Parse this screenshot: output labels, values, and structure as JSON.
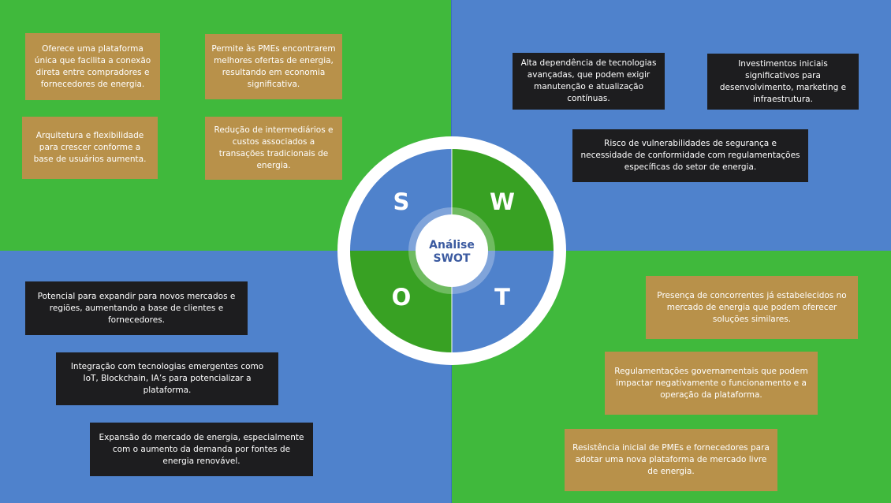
{
  "swot": {
    "title_line1": "Análise",
    "title_line2": "SWOT",
    "letters": {
      "s": "S",
      "w": "W",
      "o": "O",
      "t": "T"
    },
    "strengths": [
      "Oferece uma plataforma única que facilita a conexão direta entre compradores e fornecedores de energia.",
      "Permite às PMEs encontrarem melhores ofertas de energia, resultando em economia significativa.",
      "Arquitetura  e flexibilidade para crescer conforme a base de usuários aumenta.",
      "Redução de intermediários e custos associados a transações tradicionais de energia."
    ],
    "weaknesses": [
      "Alta dependência de tecnologias avançadas, que podem exigir manutenção e atualização contínuas.",
      "Investimentos iniciais significativos para desenvolvimento, marketing e infraestrutura.",
      "Risco de vulnerabilidades de segurança e necessidade de conformidade com regulamentações específicas do setor de energia."
    ],
    "opportunities": [
      "Potencial para expandir para novos mercados e regiões, aumentando a base de clientes e fornecedores.",
      "Integração com tecnologias emergentes como IoT, Blockchain, IA’s para potencializar a plataforma.",
      "Expansão do mercado de energia, especialmente com o aumento da demanda por fontes de energia renovável."
    ],
    "threats": [
      "Presença de concorrentes já estabelecidos no mercado de energia que podem oferecer soluções similares.",
      "Regulamentações governamentais que podem impactar negativamente o funcionamento e a operação da plataforma.",
      "Resistência inicial de PMEs e fornecedores para adotar uma nova plataforma de mercado livre de energia."
    ]
  },
  "colors": {
    "green": "#40b93c",
    "blue": "#4f82cc",
    "dark_green": "#38a123",
    "gold": "#b8914a",
    "dark": "#1d1d1f",
    "center_text": "#3b5aa0"
  }
}
